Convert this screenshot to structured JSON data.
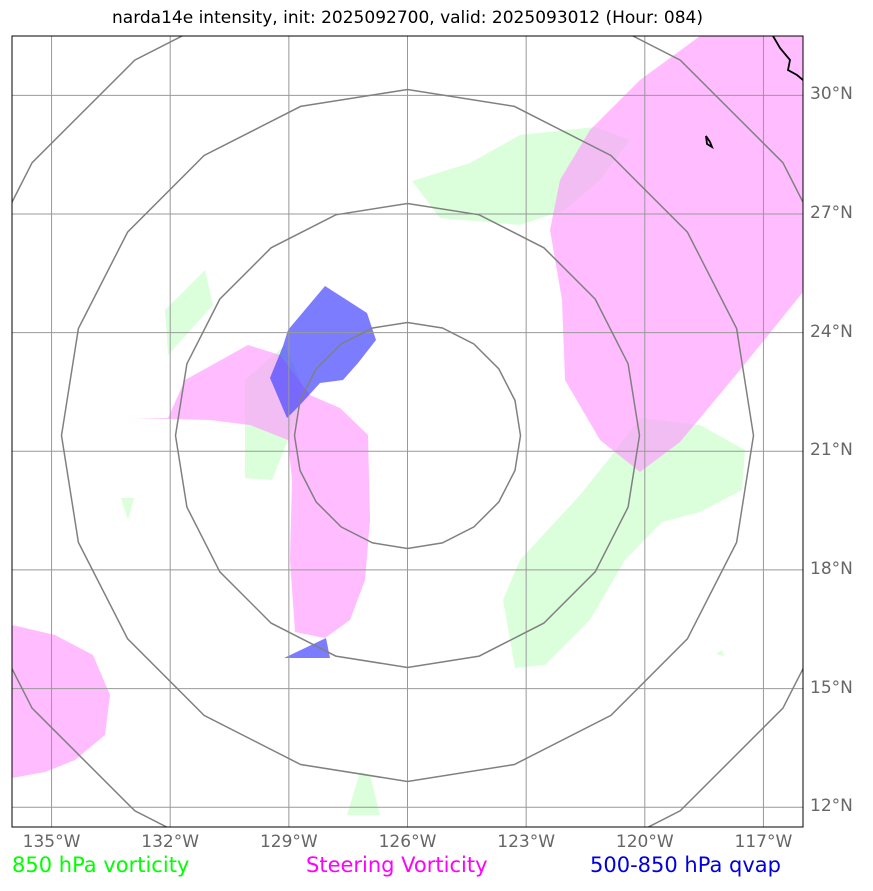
{
  "title": "narda14e intensity, init: 2025092700, valid: 2025093012 (Hour: 084)",
  "map": {
    "lat_labels": [
      "30°N",
      "27°N",
      "24°N",
      "21°N",
      "18°N",
      "15°N",
      "12°N"
    ],
    "lon_labels": [
      "135°W",
      "132°W",
      "129°W",
      "126°W",
      "123°W",
      "120°W",
      "117°W"
    ],
    "extent": {
      "lon_min": -136,
      "lon_max": -116,
      "lat_min": 11.5,
      "lat_max": 31.5
    },
    "storm_center": {
      "lon": -126,
      "lat": 21.4
    },
    "range_rings_count": 4
  },
  "legend": {
    "vorticity_850": "850 hPa vorticity",
    "steering_vorticity": "Steering Vorticity",
    "qvap": "500-850 hPa qvap"
  },
  "colors": {
    "vorticity_850": "#00ff00",
    "steering_vorticity": "#ff00ff",
    "qvap": "#0000dd",
    "grid": "#999999",
    "rings": "#808080"
  }
}
